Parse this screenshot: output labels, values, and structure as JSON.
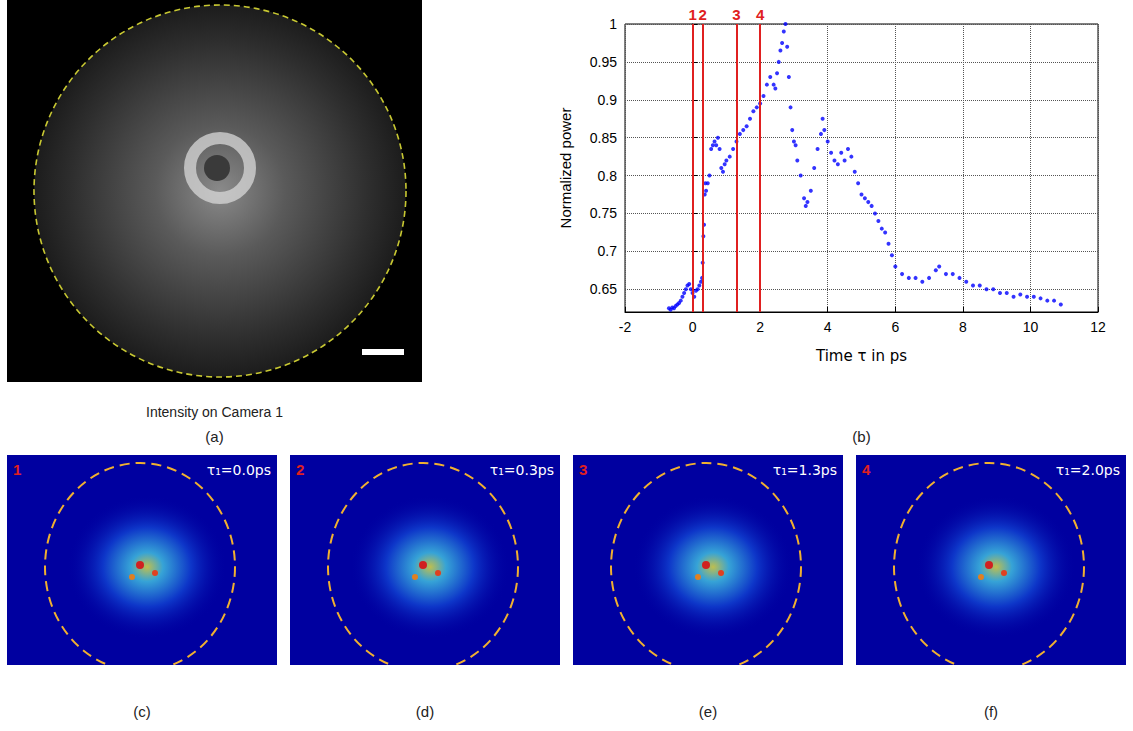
{
  "panels": {
    "a": {
      "caption": "Intensity on Camera 1",
      "label": "(a)"
    },
    "b": {
      "label": "(b)"
    },
    "images": [
      {
        "number": "1",
        "time": "τ₁=0.0ps",
        "label": "(c)"
      },
      {
        "number": "2",
        "time": "τ₁=0.3ps",
        "label": "(d)"
      },
      {
        "number": "3",
        "time": "τ₁=1.3ps",
        "label": "(e)"
      },
      {
        "number": "4",
        "time": "τ₁=2.0ps",
        "label": "(f)"
      }
    ]
  },
  "chart_data": {
    "type": "scatter",
    "xlabel": "Time τ in ps",
    "ylabel": "Normalized power",
    "color": "#0000ff",
    "marker": "circle",
    "grid": true,
    "xlim": [
      -2,
      12
    ],
    "xticks": [
      -2,
      0,
      2,
      4,
      6,
      8,
      10,
      12
    ],
    "ylim": [
      0.62,
      1
    ],
    "yticks": [
      0.65,
      0.7,
      0.75,
      0.8,
      0.85,
      0.9,
      0.95,
      1
    ],
    "annotations": [
      {
        "x": 0,
        "text": "1"
      },
      {
        "x": 0.3,
        "text": "2"
      },
      {
        "x": 1.3,
        "text": "3"
      },
      {
        "x": 2.0,
        "text": "4"
      }
    ],
    "x": [
      -0.7,
      -0.65,
      -0.6,
      -0.55,
      -0.5,
      -0.45,
      -0.4,
      -0.35,
      -0.3,
      -0.25,
      -0.2,
      -0.15,
      -0.1,
      -0.05,
      0,
      0.05,
      0.1,
      0.15,
      0.2,
      0.25,
      0.28,
      0.3,
      0.32,
      0.34,
      0.36,
      0.38,
      0.4,
      0.45,
      0.5,
      0.55,
      0.6,
      0.65,
      0.7,
      0.75,
      0.8,
      0.85,
      0.9,
      0.95,
      1.0,
      1.1,
      1.2,
      1.3,
      1.4,
      1.5,
      1.6,
      1.7,
      1.8,
      1.9,
      2.0,
      2.1,
      2.2,
      2.3,
      2.4,
      2.45,
      2.5,
      2.55,
      2.6,
      2.65,
      2.7,
      2.75,
      2.8,
      2.85,
      2.9,
      2.95,
      3.0,
      3.05,
      3.1,
      3.2,
      3.3,
      3.35,
      3.4,
      3.5,
      3.6,
      3.7,
      3.8,
      3.85,
      3.9,
      4.0,
      4.1,
      4.2,
      4.3,
      4.4,
      4.5,
      4.6,
      4.7,
      4.8,
      4.9,
      5.0,
      5.1,
      5.2,
      5.3,
      5.4,
      5.5,
      5.6,
      5.7,
      5.8,
      5.9,
      6.0,
      6.2,
      6.4,
      6.6,
      6.8,
      7.0,
      7.2,
      7.3,
      7.5,
      7.7,
      7.9,
      8.1,
      8.3,
      8.5,
      8.7,
      8.9,
      9.1,
      9.3,
      9.5,
      9.7,
      9.9,
      10.1,
      10.3,
      10.5,
      10.7,
      10.9
    ],
    "values": [
      0.625,
      0.623,
      0.626,
      0.625,
      0.628,
      0.63,
      0.632,
      0.635,
      0.64,
      0.645,
      0.65,
      0.655,
      0.657,
      0.65,
      0.645,
      0.64,
      0.648,
      0.65,
      0.655,
      0.66,
      0.665,
      0.685,
      0.72,
      0.735,
      0.775,
      0.79,
      0.78,
      0.79,
      0.8,
      0.835,
      0.84,
      0.845,
      0.84,
      0.85,
      0.835,
      0.81,
      0.805,
      0.815,
      0.82,
      0.825,
      0.835,
      0.845,
      0.855,
      0.86,
      0.865,
      0.875,
      0.885,
      0.89,
      0.895,
      0.905,
      0.92,
      0.93,
      0.92,
      0.915,
      0.935,
      0.95,
      0.965,
      0.975,
      0.99,
      1.0,
      0.97,
      0.93,
      0.89,
      0.86,
      0.845,
      0.84,
      0.82,
      0.8,
      0.77,
      0.76,
      0.765,
      0.78,
      0.81,
      0.835,
      0.855,
      0.875,
      0.86,
      0.845,
      0.83,
      0.82,
      0.815,
      0.83,
      0.82,
      0.835,
      0.825,
      0.805,
      0.79,
      0.775,
      0.77,
      0.765,
      0.76,
      0.75,
      0.74,
      0.73,
      0.725,
      0.71,
      0.695,
      0.68,
      0.67,
      0.665,
      0.665,
      0.66,
      0.665,
      0.675,
      0.68,
      0.67,
      0.67,
      0.665,
      0.66,
      0.655,
      0.655,
      0.65,
      0.65,
      0.645,
      0.645,
      0.64,
      0.643,
      0.64,
      0.64,
      0.638,
      0.635,
      0.635,
      0.63
    ]
  }
}
